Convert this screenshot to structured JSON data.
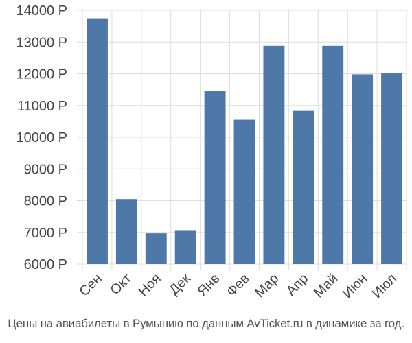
{
  "chart_data": {
    "type": "bar",
    "categories": [
      "Сен",
      "Окт",
      "Ноя",
      "Дек",
      "Янв",
      "Фев",
      "Мар",
      "Апр",
      "Май",
      "Июн",
      "Июл"
    ],
    "values": [
      13750,
      8050,
      6970,
      7050,
      11450,
      10550,
      12880,
      10830,
      12880,
      11980,
      12010
    ],
    "ylim": [
      6000,
      14000
    ],
    "yticks": [
      6000,
      7000,
      8000,
      9000,
      10000,
      11000,
      12000,
      13000,
      14000
    ],
    "ytick_suffix": " Р",
    "grid": true,
    "bar_color": "#4d78a8",
    "grid_color": "#dddddd"
  },
  "caption": "Цены на авиабилеты в Румынию по данным AvTicket.ru в динамике за год."
}
